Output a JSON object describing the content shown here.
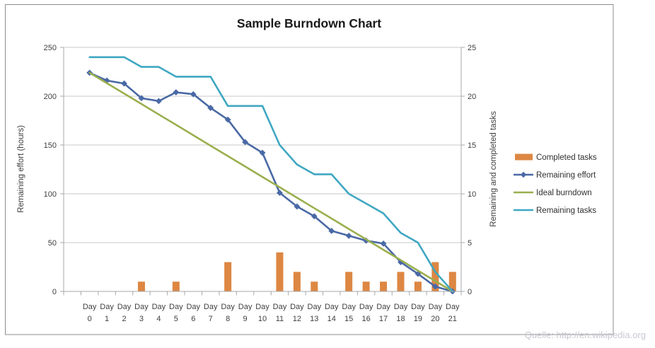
{
  "watermark": "Quelle: http://en.wikipedia.org",
  "chart_data": {
    "type": "combo-bar-line",
    "title": "Sample Burndown Chart",
    "categories": [
      "Day 0",
      "Day 1",
      "Day 2",
      "Day 3",
      "Day 4",
      "Day 5",
      "Day 6",
      "Day 7",
      "Day 8",
      "Day 9",
      "Day 10",
      "Day 11",
      "Day 12",
      "Day 13",
      "Day 14",
      "Day 15",
      "Day 16",
      "Day 17",
      "Day 18",
      "Day 19",
      "Day 20",
      "Day 21"
    ],
    "left_axis": {
      "label": "Remaining effort (hours)",
      "min": 0,
      "max": 250,
      "step": 50,
      "ticks": [
        0,
        50,
        100,
        150,
        200,
        250
      ]
    },
    "right_axis": {
      "label": "Remaining and completed tasks",
      "min": 0,
      "max": 25,
      "step": 5,
      "ticks": [
        0,
        5,
        10,
        15,
        20,
        25
      ]
    },
    "grid": true,
    "legend_position": "right",
    "colors": {
      "completed_tasks": "#DD8743",
      "remaining_effort": "#4A69A5",
      "ideal_burndown": "#9AAF4E",
      "remaining_tasks": "#3FA7C2",
      "gridline": "#C9C9C9",
      "axis": "#A8A8A8",
      "border": "#8C8C8C"
    },
    "series": [
      {
        "name": "Completed tasks",
        "type": "bar",
        "axis": "right",
        "color": "#DD8743",
        "values": [
          0,
          0,
          0,
          1,
          0,
          1,
          0,
          0,
          3,
          0,
          0,
          4,
          2,
          1,
          0,
          2,
          1,
          1,
          2,
          1,
          3,
          2
        ]
      },
      {
        "name": "Remaining effort",
        "type": "line",
        "axis": "left",
        "marker": "diamond",
        "color": "#4A69A5",
        "values": [
          224,
          216,
          213,
          198,
          195,
          204,
          202,
          188,
          176,
          153,
          142,
          101,
          87,
          77,
          62,
          57,
          52,
          49,
          30,
          18,
          5,
          0
        ]
      },
      {
        "name": "Ideal burndown",
        "type": "line",
        "axis": "left",
        "marker": "none",
        "color": "#9AAF4E",
        "values": [
          224,
          213.3,
          202.7,
          192,
          181.3,
          170.7,
          160,
          149.3,
          138.7,
          128,
          117.3,
          106.7,
          96,
          85.3,
          74.7,
          64,
          53.3,
          42.7,
          32,
          21.3,
          10.7,
          0
        ]
      },
      {
        "name": "Remaining tasks",
        "type": "line",
        "axis": "right",
        "marker": "none",
        "color": "#3FA7C2",
        "values": [
          24,
          24,
          24,
          23,
          23,
          22,
          22,
          22,
          19,
          19,
          19,
          15,
          13,
          12,
          12,
          10,
          9,
          8,
          6,
          5,
          2,
          0
        ]
      }
    ]
  }
}
